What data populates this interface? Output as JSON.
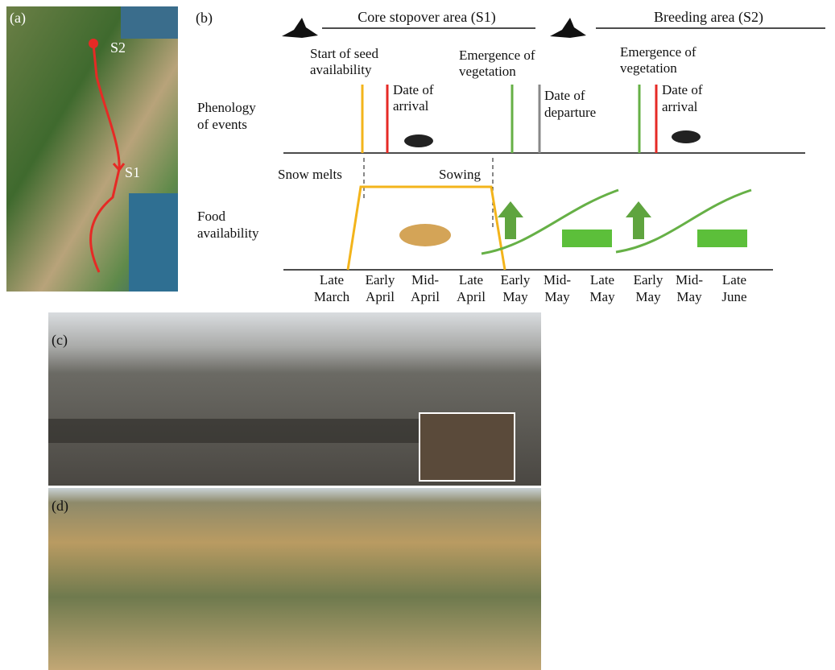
{
  "panels": {
    "a": "(a)",
    "b": "(b)",
    "c": "(c)",
    "d": "(d)"
  },
  "map": {
    "sites": [
      "S2",
      "S1"
    ]
  },
  "headers": [
    "Core stopover area (S1)",
    "Breeding area (S2)"
  ],
  "row_labels": {
    "phenology": [
      "Phenology",
      "of events"
    ],
    "food": [
      "Food",
      "availability"
    ]
  },
  "events": [
    [
      "Start of seed",
      "availability"
    ],
    [
      "Date of",
      "arrival"
    ],
    [
      "Emergence of",
      "vegetation"
    ],
    [
      "Date of",
      "departure"
    ],
    [
      "Emergence of",
      "vegetation"
    ],
    [
      "Date of",
      "arrival"
    ]
  ],
  "food_events": [
    "Snow melts",
    "Sowing"
  ],
  "periods": [
    [
      "Late",
      "March"
    ],
    [
      "Early",
      "April"
    ],
    [
      "Mid-",
      "April"
    ],
    [
      "Late",
      "April"
    ],
    [
      "Early",
      "May"
    ],
    [
      "Mid-",
      "May"
    ],
    [
      "Late",
      "May"
    ],
    [
      "Early",
      "May"
    ],
    [
      "Mid-",
      "May"
    ],
    [
      "Late",
      "June"
    ]
  ]
}
